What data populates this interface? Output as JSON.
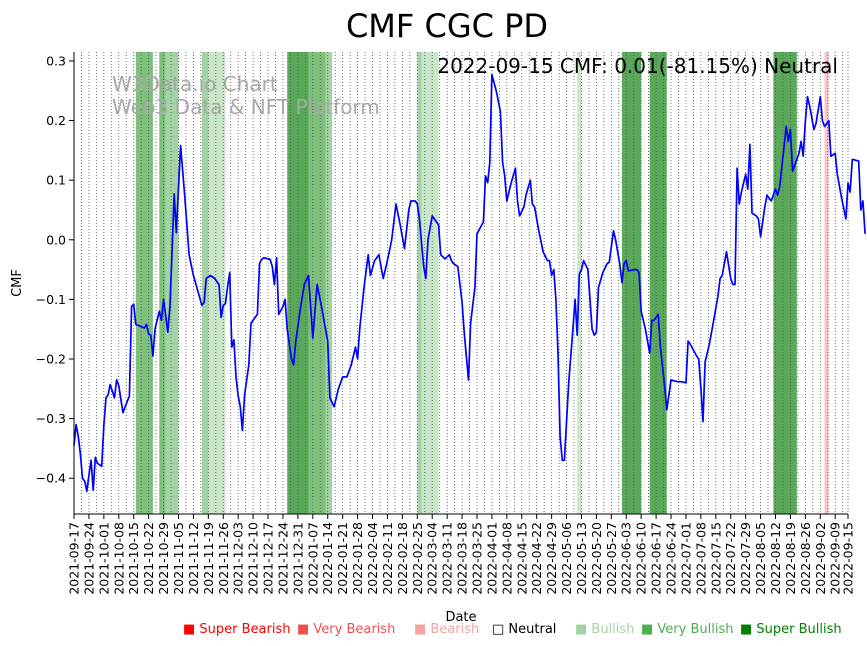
{
  "chart_data": {
    "type": "line",
    "title": "CMF CGC PD",
    "xlabel": "Date",
    "ylabel": "CMF",
    "ylim": [
      -0.46,
      0.315
    ],
    "yticks": [
      -0.4,
      -0.3,
      -0.2,
      -0.1,
      0.0,
      0.1,
      0.2,
      0.3
    ],
    "ytick_labels": [
      "−0.4",
      "−0.3",
      "−0.2",
      "−0.1",
      "0.0",
      "0.1",
      "0.2",
      "0.3"
    ],
    "x_start": "2021-09-17",
    "x_end": "2022-09-15",
    "xtick_labels": [
      "2021-09-17",
      "2021-09-24",
      "2021-10-01",
      "2021-10-08",
      "2021-10-15",
      "2021-10-22",
      "2021-10-29",
      "2021-11-05",
      "2021-11-12",
      "2021-11-19",
      "2021-11-26",
      "2021-12-03",
      "2021-12-10",
      "2021-12-17",
      "2021-12-24",
      "2021-12-31",
      "2022-01-07",
      "2022-01-14",
      "2022-01-21",
      "2022-01-28",
      "2022-02-04",
      "2022-02-11",
      "2022-02-18",
      "2022-02-25",
      "2022-03-04",
      "2022-03-11",
      "2022-03-18",
      "2022-03-25",
      "2022-04-01",
      "2022-04-08",
      "2022-04-15",
      "2022-04-22",
      "2022-04-29",
      "2022-05-06",
      "2022-05-13",
      "2022-05-20",
      "2022-05-27",
      "2022-06-03",
      "2022-06-10",
      "2022-06-17",
      "2022-06-24",
      "2022-07-01",
      "2022-07-08",
      "2022-07-15",
      "2022-07-22",
      "2022-07-29",
      "2022-08-05",
      "2022-08-12",
      "2022-08-19",
      "2022-08-26",
      "2022-09-02",
      "2022-09-09",
      "2022-09-15"
    ],
    "series": [
      {
        "name": "CMF",
        "color": "#0000ff",
        "points": [
          [
            0,
            -0.345
          ],
          [
            1,
            -0.31
          ],
          [
            2,
            -0.33
          ],
          [
            3,
            -0.36
          ],
          [
            4,
            -0.4
          ],
          [
            5,
            -0.405
          ],
          [
            6,
            -0.422
          ],
          [
            7,
            -0.395
          ],
          [
            8,
            -0.37
          ],
          [
            9,
            -0.42
          ],
          [
            10,
            -0.365
          ],
          [
            11,
            -0.375
          ],
          [
            13,
            -0.38
          ],
          [
            14,
            -0.31
          ],
          [
            15,
            -0.265
          ],
          [
            16,
            -0.26
          ],
          [
            17,
            -0.243
          ],
          [
            19,
            -0.265
          ],
          [
            20,
            -0.235
          ],
          [
            21,
            -0.245
          ],
          [
            22,
            -0.268
          ],
          [
            23,
            -0.29
          ],
          [
            24,
            -0.28
          ],
          [
            26,
            -0.262
          ],
          [
            27,
            -0.112
          ],
          [
            28,
            -0.108
          ],
          [
            29,
            -0.142
          ],
          [
            31,
            -0.145
          ],
          [
            33,
            -0.148
          ],
          [
            34,
            -0.142
          ],
          [
            35,
            -0.158
          ],
          [
            36,
            -0.16
          ],
          [
            37,
            -0.195
          ],
          [
            38,
            -0.15
          ],
          [
            40,
            -0.12
          ],
          [
            41,
            -0.135
          ],
          [
            42,
            -0.1
          ],
          [
            44,
            -0.155
          ],
          [
            45,
            -0.11
          ],
          [
            47,
            0.077
          ],
          [
            48,
            0.012
          ],
          [
            50,
            0.158
          ],
          [
            52,
            0.07
          ],
          [
            54,
            -0.025
          ],
          [
            56,
            -0.06
          ],
          [
            58,
            -0.085
          ],
          [
            60,
            -0.11
          ],
          [
            61,
            -0.105
          ],
          [
            62,
            -0.065
          ],
          [
            64,
            -0.06
          ],
          [
            66,
            -0.065
          ],
          [
            68,
            -0.075
          ],
          [
            69,
            -0.13
          ],
          [
            70,
            -0.11
          ],
          [
            71,
            -0.107
          ],
          [
            72,
            -0.08
          ],
          [
            73,
            -0.055
          ],
          [
            74,
            -0.18
          ],
          [
            75,
            -0.168
          ],
          [
            76,
            -0.23
          ],
          [
            77,
            -0.262
          ],
          [
            78,
            -0.28
          ],
          [
            79,
            -0.32
          ],
          [
            80,
            -0.26
          ],
          [
            82,
            -0.21
          ],
          [
            83,
            -0.14
          ],
          [
            86,
            -0.125
          ],
          [
            87,
            -0.04
          ],
          [
            88,
            -0.033
          ],
          [
            89,
            -0.03
          ],
          [
            92,
            -0.033
          ],
          [
            93,
            -0.045
          ],
          [
            94,
            -0.075
          ],
          [
            95,
            -0.03
          ],
          [
            96,
            -0.125
          ],
          [
            98,
            -0.112
          ],
          [
            99,
            -0.1
          ],
          [
            100,
            -0.15
          ],
          [
            102,
            -0.2
          ],
          [
            103,
            -0.21
          ],
          [
            104,
            -0.17
          ],
          [
            106,
            -0.12
          ],
          [
            108,
            -0.075
          ],
          [
            110,
            -0.06
          ],
          [
            112,
            -0.165
          ],
          [
            114,
            -0.075
          ],
          [
            116,
            -0.11
          ],
          [
            119,
            -0.17
          ],
          [
            120,
            -0.265
          ],
          [
            122,
            -0.28
          ],
          [
            124,
            -0.25
          ],
          [
            126,
            -0.23
          ],
          [
            128,
            -0.23
          ],
          [
            130,
            -0.21
          ],
          [
            132,
            -0.18
          ],
          [
            133,
            -0.2
          ],
          [
            134,
            -0.15
          ],
          [
            136,
            -0.08
          ],
          [
            138,
            -0.025
          ],
          [
            139,
            -0.06
          ],
          [
            141,
            -0.035
          ],
          [
            143,
            -0.025
          ],
          [
            145,
            -0.065
          ],
          [
            147,
            -0.035
          ],
          [
            149,
            0.0
          ],
          [
            151,
            0.06
          ],
          [
            153,
            0.025
          ],
          [
            155,
            -0.015
          ],
          [
            157,
            0.05
          ],
          [
            158,
            0.065
          ],
          [
            160,
            0.065
          ],
          [
            161,
            0.06
          ],
          [
            162,
            0.035
          ],
          [
            164,
            -0.045
          ],
          [
            165,
            -0.065
          ],
          [
            166,
            0.0
          ],
          [
            168,
            0.04
          ],
          [
            171,
            0.025
          ],
          [
            172,
            -0.025
          ],
          [
            174,
            -0.032
          ],
          [
            176,
            -0.025
          ],
          [
            177,
            -0.035
          ],
          [
            178,
            -0.04
          ],
          [
            180,
            -0.045
          ],
          [
            182,
            -0.105
          ],
          [
            183,
            -0.155
          ],
          [
            184,
            -0.195
          ],
          [
            185,
            -0.235
          ],
          [
            186,
            -0.14
          ],
          [
            188,
            -0.08
          ],
          [
            189,
            0.01
          ],
          [
            192,
            0.03
          ],
          [
            193,
            0.107
          ],
          [
            194,
            0.096
          ],
          [
            195,
            0.13
          ],
          [
            196,
            0.277
          ],
          [
            198,
            0.25
          ],
          [
            200,
            0.215
          ],
          [
            201,
            0.13
          ],
          [
            202,
            0.107
          ],
          [
            203,
            0.065
          ],
          [
            205,
            0.095
          ],
          [
            207,
            0.12
          ],
          [
            208,
            0.065
          ],
          [
            209,
            0.04
          ],
          [
            211,
            0.055
          ],
          [
            212,
            0.075
          ],
          [
            214,
            0.1
          ],
          [
            215,
            0.06
          ],
          [
            216,
            0.055
          ],
          [
            218,
            0.015
          ],
          [
            220,
            -0.02
          ],
          [
            222,
            -0.035
          ],
          [
            223,
            -0.035
          ],
          [
            224,
            -0.06
          ],
          [
            225,
            -0.05
          ],
          [
            226,
            -0.1
          ],
          [
            227,
            -0.19
          ],
          [
            228,
            -0.33
          ],
          [
            229,
            -0.37
          ],
          [
            230,
            -0.37
          ],
          [
            232,
            -0.24
          ],
          [
            234,
            -0.15
          ],
          [
            235,
            -0.1
          ],
          [
            236,
            -0.16
          ],
          [
            237,
            -0.058
          ],
          [
            238,
            -0.05
          ],
          [
            239,
            -0.035
          ],
          [
            241,
            -0.05
          ],
          [
            243,
            -0.15
          ],
          [
            244,
            -0.16
          ],
          [
            245,
            -0.155
          ],
          [
            246,
            -0.08
          ],
          [
            248,
            -0.055
          ],
          [
            250,
            -0.04
          ],
          [
            251,
            -0.038
          ],
          [
            253,
            0.015
          ],
          [
            254,
            -0.0
          ],
          [
            256,
            -0.042
          ],
          [
            257,
            -0.072
          ],
          [
            258,
            -0.04
          ],
          [
            259,
            -0.035
          ],
          [
            260,
            -0.052
          ],
          [
            263,
            -0.05
          ],
          [
            264,
            -0.05
          ],
          [
            265,
            -0.055
          ],
          [
            266,
            -0.12
          ],
          [
            268,
            -0.15
          ],
          [
            270,
            -0.19
          ],
          [
            271,
            -0.135
          ],
          [
            272,
            -0.135
          ],
          [
            273,
            -0.13
          ],
          [
            274,
            -0.125
          ],
          [
            275,
            -0.18
          ],
          [
            277,
            -0.245
          ],
          [
            278,
            -0.285
          ],
          [
            279,
            -0.26
          ],
          [
            280,
            -0.235
          ],
          [
            283,
            -0.238
          ],
          [
            285,
            -0.238
          ],
          [
            287,
            -0.24
          ],
          [
            288,
            -0.17
          ],
          [
            289,
            -0.175
          ],
          [
            292,
            -0.195
          ],
          [
            293,
            -0.2
          ],
          [
            294,
            -0.25
          ],
          [
            295,
            -0.305
          ],
          [
            296,
            -0.205
          ],
          [
            298,
            -0.175
          ],
          [
            300,
            -0.135
          ],
          [
            302,
            -0.095
          ],
          [
            303,
            -0.065
          ],
          [
            304,
            -0.06
          ],
          [
            306,
            -0.02
          ],
          [
            308,
            -0.065
          ],
          [
            309,
            -0.075
          ],
          [
            310,
            -0.075
          ],
          [
            311,
            0.12
          ],
          [
            312,
            0.06
          ],
          [
            313,
            0.08
          ],
          [
            315,
            0.11
          ],
          [
            316,
            0.085
          ],
          [
            317,
            0.16
          ],
          [
            318,
            0.045
          ],
          [
            320,
            0.04
          ],
          [
            321,
            0.035
          ],
          [
            322,
            0.005
          ],
          [
            324,
            0.055
          ],
          [
            325,
            0.075
          ],
          [
            327,
            0.065
          ],
          [
            329,
            0.085
          ],
          [
            330,
            0.075
          ],
          [
            331,
            0.09
          ],
          [
            334,
            0.19
          ],
          [
            335,
            0.165
          ],
          [
            336,
            0.185
          ],
          [
            337,
            0.115
          ],
          [
            338,
            0.125
          ],
          [
            340,
            0.145
          ],
          [
            341,
            0.165
          ],
          [
            342,
            0.14
          ],
          [
            343,
            0.2
          ],
          [
            344,
            0.24
          ],
          [
            345,
            0.225
          ],
          [
            346,
            0.205
          ],
          [
            347,
            0.185
          ],
          [
            348,
            0.195
          ],
          [
            350,
            0.24
          ],
          [
            351,
            0.2
          ],
          [
            352,
            0.19
          ],
          [
            354,
            0.2
          ],
          [
            355,
            0.14
          ],
          [
            357,
            0.145
          ],
          [
            358,
            0.11
          ],
          [
            360,
            0.07
          ],
          [
            362,
            0.035
          ],
          [
            363,
            0.095
          ],
          [
            364,
            0.08
          ],
          [
            365,
            0.135
          ],
          [
            368,
            0.132
          ],
          [
            369,
            0.05
          ],
          [
            370,
            0.065
          ],
          [
            371,
            0.01
          ]
        ]
      }
    ],
    "bands": [
      {
        "start": 29,
        "end": 37,
        "level": "very"
      },
      {
        "start": 40,
        "end": 43,
        "level": "very"
      },
      {
        "start": 43,
        "end": 49,
        "level": "bull"
      },
      {
        "start": 60,
        "end": 63,
        "level": "bull"
      },
      {
        "start": 63,
        "end": 71,
        "level": "light"
      },
      {
        "start": 100,
        "end": 110,
        "level": "strong"
      },
      {
        "start": 110,
        "end": 118,
        "level": "very"
      },
      {
        "start": 118,
        "end": 121,
        "level": "bull"
      },
      {
        "start": 161,
        "end": 163,
        "level": "bull"
      },
      {
        "start": 163,
        "end": 171,
        "level": "light"
      },
      {
        "start": 236,
        "end": 238,
        "level": "light"
      },
      {
        "start": 257,
        "end": 266,
        "level": "strong"
      },
      {
        "start": 270,
        "end": 278,
        "level": "strong"
      },
      {
        "start": 328,
        "end": 339,
        "level": "strong"
      },
      {
        "start": 352,
        "end": 354,
        "level": "bear"
      }
    ],
    "watermark": [
      "W3Data.io Chart",
      "Web3 Data & NFT Platform"
    ],
    "annotation": "2022-09-15 CMF: 0.01(-81.15%) Neutral",
    "legend": [
      {
        "label": "Super Bearish",
        "color": "#ff0000",
        "symbol": "■"
      },
      {
        "label": "Very Bearish",
        "color": "#f05050",
        "symbol": "■"
      },
      {
        "label": "Bearish",
        "color": "#f5a3a3",
        "symbol": "■"
      },
      {
        "label": "Neutral",
        "color": "#000000",
        "symbol": "□"
      },
      {
        "label": "Bullish",
        "color": "#a3d3a3",
        "symbol": "■"
      },
      {
        "label": "Very Bullish",
        "color": "#4caf50",
        "symbol": "■"
      },
      {
        "label": "Super Bullish",
        "color": "#008000",
        "symbol": "■"
      }
    ],
    "band_colors": {
      "strong": "#5aa85a",
      "very": "#7cc07c",
      "bull": "#a3d3a3",
      "light": "#c9e6c9",
      "bear": "#f7c6c6"
    }
  }
}
